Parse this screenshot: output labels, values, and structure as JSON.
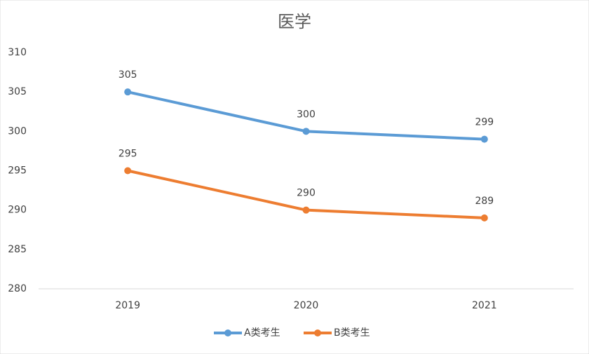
{
  "chart_data": {
    "type": "line",
    "title": "医学",
    "categories": [
      "2019",
      "2020",
      "2021"
    ],
    "series": [
      {
        "name": "A类考生",
        "color": "#5b9bd5",
        "values": [
          305,
          300,
          299
        ]
      },
      {
        "name": "B类考生",
        "color": "#ed7d31",
        "values": [
          295,
          290,
          289
        ]
      }
    ],
    "ylim": [
      280,
      310
    ],
    "yticks": [
      280,
      285,
      290,
      295,
      300,
      305,
      310
    ],
    "grid": false,
    "legend": "bottom",
    "data_labels": true
  }
}
